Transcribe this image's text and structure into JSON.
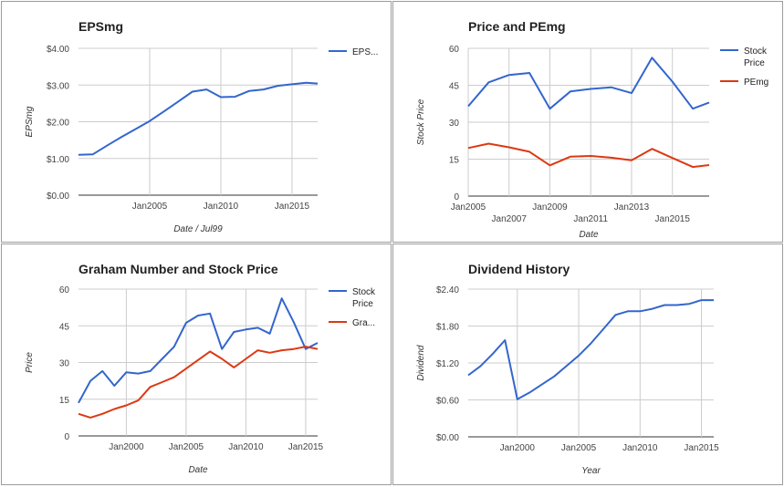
{
  "charts": [
    {
      "type": "line",
      "title": "EPSmg",
      "xlabel": "Date / Jul99",
      "ylabel": "EPSmg",
      "yticks": [
        "$0.00",
        "$1.00",
        "$2.00",
        "$3.00",
        "$4.00"
      ],
      "ylim": [
        0,
        4
      ],
      "xlim": [
        2000.0,
        2016.8
      ],
      "xticks": [
        {
          "v": 2005,
          "label": "Jan2005"
        },
        {
          "v": 2010,
          "label": "Jan2010"
        },
        {
          "v": 2015,
          "label": "Jan2015"
        }
      ],
      "grid": true,
      "legend_position": "right",
      "colors": {
        "series": [
          "#3366cc"
        ]
      },
      "series": [
        {
          "name": "EPS...",
          "color": "#3366cc",
          "x": [
            2000.0,
            2001.0,
            2002.0,
            2003.0,
            2004.0,
            2005.0,
            2006.0,
            2007.0,
            2008.0,
            2009.0,
            2010.0,
            2011.0,
            2012.0,
            2013.0,
            2014.0,
            2015.0,
            2016.0,
            2016.8
          ],
          "y": [
            1.1,
            1.11,
            1.35,
            1.58,
            1.8,
            2.02,
            2.28,
            2.55,
            2.82,
            2.88,
            2.67,
            2.68,
            2.84,
            2.88,
            2.98,
            3.02,
            3.06,
            3.04
          ]
        }
      ]
    },
    {
      "type": "line",
      "title": "Price and PEmg",
      "xlabel": "Date",
      "ylabel": "Stock Price",
      "yticks": [
        "0",
        "15",
        "30",
        "45",
        "60"
      ],
      "ylim": [
        0,
        60
      ],
      "xlim": [
        2005.0,
        2016.8
      ],
      "xticks": [
        {
          "v": 2005,
          "label": "Jan2005",
          "row": 0
        },
        {
          "v": 2007,
          "label": "Jan2007",
          "row": 1
        },
        {
          "v": 2009,
          "label": "Jan2009",
          "row": 0
        },
        {
          "v": 2011,
          "label": "Jan2011",
          "row": 1
        },
        {
          "v": 2013,
          "label": "Jan2013",
          "row": 0
        },
        {
          "v": 2015,
          "label": "Jan2015",
          "row": 1
        }
      ],
      "grid": true,
      "legend_position": "right",
      "colors": {
        "series": [
          "#3366cc",
          "#dc3912"
        ]
      },
      "series": [
        {
          "name": "Stock Price",
          "color": "#3366cc",
          "x": [
            2005.0,
            2006.0,
            2007.0,
            2008.0,
            2009.0,
            2010.0,
            2011.0,
            2012.0,
            2013.0,
            2014.0,
            2015.0,
            2016.0,
            2016.8
          ],
          "y": [
            36.5,
            46.2,
            49.2,
            50.0,
            35.5,
            42.5,
            43.5,
            44.2,
            41.8,
            56.2,
            46.5,
            35.5,
            38.0
          ]
        },
        {
          "name": "PEmg",
          "color": "#dc3912",
          "x": [
            2005.0,
            2006.0,
            2007.0,
            2008.0,
            2009.0,
            2010.0,
            2011.0,
            2012.0,
            2013.0,
            2014.0,
            2015.0,
            2016.0,
            2016.8
          ],
          "y": [
            19.5,
            21.3,
            19.8,
            18.0,
            12.5,
            16.0,
            16.3,
            15.6,
            14.5,
            19.2,
            15.5,
            11.8,
            12.6
          ]
        }
      ]
    },
    {
      "type": "line",
      "title": "Graham Number and Stock Price",
      "xlabel": "Date",
      "ylabel": "Price",
      "yticks": [
        "0",
        "15",
        "30",
        "45",
        "60"
      ],
      "ylim": [
        0,
        60
      ],
      "xlim": [
        1996.0,
        2016.0
      ],
      "xticks": [
        {
          "v": 2000,
          "label": "Jan2000"
        },
        {
          "v": 2005,
          "label": "Jan2005"
        },
        {
          "v": 2010,
          "label": "Jan2010"
        },
        {
          "v": 2015,
          "label": "Jan2015"
        }
      ],
      "grid": true,
      "legend_position": "right",
      "colors": {
        "series": [
          "#3366cc",
          "#dc3912"
        ]
      },
      "series": [
        {
          "name": "Stock Price",
          "color": "#3366cc",
          "x": [
            1996.0,
            1997.0,
            1998.0,
            1999.0,
            2000.0,
            2001.0,
            2002.0,
            2003.0,
            2004.0,
            2005.0,
            2006.0,
            2007.0,
            2008.0,
            2009.0,
            2010.0,
            2011.0,
            2012.0,
            2013.0,
            2014.0,
            2015.0,
            2016.0
          ],
          "y": [
            13.5,
            22.5,
            26.5,
            20.5,
            26.0,
            25.5,
            26.5,
            31.5,
            36.5,
            46.2,
            49.2,
            50.0,
            35.5,
            42.5,
            43.5,
            44.2,
            41.8,
            56.2,
            46.5,
            35.5,
            38.0
          ]
        },
        {
          "name": "Gra...",
          "color": "#dc3912",
          "x": [
            1996.0,
            1997.0,
            1998.0,
            1999.0,
            2000.0,
            2001.0,
            2002.0,
            2003.0,
            2004.0,
            2005.0,
            2006.0,
            2007.0,
            2008.0,
            2009.0,
            2010.0,
            2011.0,
            2012.0,
            2013.0,
            2014.0,
            2015.0,
            2016.0
          ],
          "y": [
            9.0,
            7.5,
            9.0,
            11.0,
            12.5,
            14.5,
            20.0,
            22.0,
            24.0,
            27.5,
            31.0,
            34.5,
            31.5,
            28.0,
            31.5,
            35.0,
            34.0,
            35.0,
            35.5,
            36.5,
            35.5
          ]
        }
      ]
    },
    {
      "type": "line",
      "title": "Dividend History",
      "xlabel": "Year",
      "ylabel": "Dividend",
      "yticks": [
        "$0.00",
        "$0.60",
        "$1.20",
        "$1.80",
        "$2.40"
      ],
      "ylim": [
        0,
        2.4
      ],
      "xlim": [
        1996.0,
        2016.0
      ],
      "xticks": [
        {
          "v": 2000,
          "label": "Jan2000"
        },
        {
          "v": 2005,
          "label": "Jan2005"
        },
        {
          "v": 2010,
          "label": "Jan2010"
        },
        {
          "v": 2015,
          "label": "Jan2015"
        }
      ],
      "grid": true,
      "legend_position": "none",
      "colors": {
        "series": [
          "#3366cc"
        ]
      },
      "series": [
        {
          "name": "",
          "color": "#3366cc",
          "x": [
            1996.0,
            1997.0,
            1998.0,
            1999.0,
            2000.0,
            2001.0,
            2002.0,
            2003.0,
            2004.0,
            2005.0,
            2006.0,
            2007.0,
            2008.0,
            2009.0,
            2010.0,
            2011.0,
            2012.0,
            2013.0,
            2014.0,
            2015.0,
            2016.0
          ],
          "y": [
            1.0,
            1.15,
            1.35,
            1.57,
            0.61,
            0.72,
            0.85,
            0.98,
            1.15,
            1.32,
            1.52,
            1.75,
            1.98,
            2.04,
            2.04,
            2.08,
            2.14,
            2.14,
            2.16,
            2.22,
            2.22
          ]
        }
      ]
    }
  ]
}
